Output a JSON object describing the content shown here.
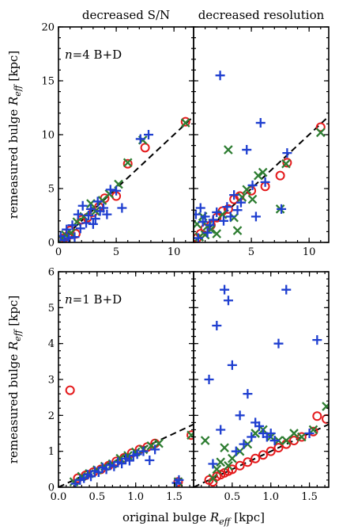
{
  "column_titles": [
    "decreased S/N",
    "decreased resolution"
  ],
  "ylabel": "remeasured bulge R",
  "ylabel_sub": "eff",
  "ylabel_unit": " [kpc]",
  "xlabel": "original bulge R",
  "xlabel_sub": "eff",
  "xlabel_unit": " [kpc]",
  "colors": {
    "circle": "#e41a1c",
    "x": "#2e7d32",
    "plus": "#1f3fd0"
  },
  "chart_data": [
    {
      "type": "scatter",
      "title": "decreased S/N",
      "panel_label": "n=4 B+D",
      "xlim": [
        0,
        11.7
      ],
      "ylim": [
        0,
        20
      ],
      "xticks": [
        0,
        5,
        10
      ],
      "yticks": [
        0,
        5,
        10,
        15,
        20
      ],
      "reference_line": "y = x",
      "series": [
        {
          "marker": "circle",
          "points": [
            [
              0.2,
              0.2
            ],
            [
              0.5,
              0.4
            ],
            [
              0.8,
              0.6
            ],
            [
              1.0,
              1.1
            ],
            [
              1.5,
              0.8
            ],
            [
              2.0,
              2.1
            ],
            [
              2.5,
              2.3
            ],
            [
              3.0,
              2.8
            ],
            [
              3.5,
              3.3
            ],
            [
              4.0,
              4.1
            ],
            [
              5.0,
              4.3
            ],
            [
              6.0,
              7.3
            ],
            [
              7.5,
              8.8
            ],
            [
              11.0,
              11.2
            ]
          ]
        },
        {
          "marker": "x",
          "points": [
            [
              0.3,
              0.3
            ],
            [
              0.6,
              0.7
            ],
            [
              1.1,
              0.9
            ],
            [
              1.6,
              1.9
            ],
            [
              2.2,
              2.4
            ],
            [
              2.8,
              3.6
            ],
            [
              3.2,
              2.9
            ],
            [
              3.8,
              3.9
            ],
            [
              4.4,
              4.5
            ],
            [
              5.2,
              5.4
            ],
            [
              6.0,
              7.4
            ],
            [
              7.3,
              9.5
            ],
            [
              11.0,
              11.1
            ]
          ]
        },
        {
          "marker": "plus",
          "points": [
            [
              0.2,
              0.6
            ],
            [
              0.5,
              0.2
            ],
            [
              0.7,
              1.2
            ],
            [
              0.9,
              0.4
            ],
            [
              1.2,
              1.6
            ],
            [
              1.4,
              0.5
            ],
            [
              1.7,
              2.6
            ],
            [
              1.9,
              1.3
            ],
            [
              2.1,
              3.4
            ],
            [
              2.4,
              1.8
            ],
            [
              2.6,
              2.5
            ],
            [
              2.8,
              3.1
            ],
            [
              3.0,
              1.7
            ],
            [
              3.2,
              2.2
            ],
            [
              3.4,
              3.8
            ],
            [
              3.6,
              2.9
            ],
            [
              3.9,
              3.2
            ],
            [
              4.2,
              2.6
            ],
            [
              4.5,
              4.9
            ],
            [
              5.0,
              4.8
            ],
            [
              5.5,
              3.2
            ],
            [
              7.1,
              9.6
            ],
            [
              7.8,
              10.0
            ]
          ]
        }
      ]
    },
    {
      "type": "scatter",
      "title": "decreased resolution",
      "xlim": [
        0,
        11.7
      ],
      "ylim": [
        0,
        20
      ],
      "xticks": [
        5,
        10
      ],
      "yticks": [
        0,
        5,
        10,
        15,
        20
      ],
      "reference_line": "y = x",
      "series": [
        {
          "marker": "circle",
          "points": [
            [
              0.3,
              0.4
            ],
            [
              0.6,
              0.8
            ],
            [
              1.0,
              1.3
            ],
            [
              1.5,
              1.6
            ],
            [
              2.0,
              2.3
            ],
            [
              2.5,
              2.9
            ],
            [
              3.0,
              3.1
            ],
            [
              3.5,
              4.0
            ],
            [
              4.0,
              4.3
            ],
            [
              5.0,
              4.8
            ],
            [
              6.2,
              5.2
            ],
            [
              7.5,
              6.2
            ],
            [
              8.1,
              7.4
            ],
            [
              11.0,
              10.7
            ]
          ]
        },
        {
          "marker": "x",
          "points": [
            [
              0.3,
              1.7
            ],
            [
              0.5,
              0.5
            ],
            [
              0.8,
              2.4
            ],
            [
              1.0,
              0.7
            ],
            [
              1.2,
              1.5
            ],
            [
              1.5,
              1.2
            ],
            [
              2.0,
              0.8
            ],
            [
              2.5,
              2.6
            ],
            [
              3.0,
              8.6
            ],
            [
              3.5,
              2.3
            ],
            [
              3.8,
              1.1
            ],
            [
              4.2,
              4.2
            ],
            [
              4.6,
              4.9
            ],
            [
              5.1,
              4.0
            ],
            [
              5.6,
              6.2
            ],
            [
              6.0,
              6.5
            ],
            [
              7.5,
              3.1
            ],
            [
              8.0,
              7.3
            ],
            [
              11.0,
              10.2
            ]
          ]
        },
        {
          "marker": "plus",
          "points": [
            [
              0.2,
              2.6
            ],
            [
              0.4,
              0.4
            ],
            [
              0.6,
              3.2
            ],
            [
              0.8,
              1.9
            ],
            [
              1.0,
              2.4
            ],
            [
              1.2,
              0.9
            ],
            [
              1.4,
              1.6
            ],
            [
              1.7,
              2.1
            ],
            [
              2.0,
              2.8
            ],
            [
              2.3,
              15.5
            ],
            [
              2.6,
              2.0
            ],
            [
              2.9,
              3.3
            ],
            [
              3.2,
              2.4
            ],
            [
              3.5,
              4.4
            ],
            [
              3.8,
              3.0
            ],
            [
              4.1,
              3.7
            ],
            [
              4.6,
              8.6
            ],
            [
              5.1,
              5.3
            ],
            [
              5.4,
              2.4
            ],
            [
              5.8,
              11.1
            ],
            [
              6.2,
              5.6
            ],
            [
              7.6,
              3.1
            ],
            [
              8.1,
              8.3
            ]
          ]
        }
      ]
    },
    {
      "type": "scatter",
      "title": "",
      "panel_label": "n=1 B+D",
      "xlim": [
        0,
        1.75
      ],
      "ylim": [
        0,
        6
      ],
      "xticks": [
        0.0,
        0.5,
        1.0,
        1.5
      ],
      "yticks": [
        0,
        1,
        2,
        3,
        4,
        5,
        6
      ],
      "reference_line": "y = x",
      "series": [
        {
          "marker": "circle",
          "points": [
            [
              0.15,
              2.7
            ],
            [
              0.25,
              0.25
            ],
            [
              0.35,
              0.33
            ],
            [
              0.45,
              0.42
            ],
            [
              0.55,
              0.5
            ],
            [
              0.65,
              0.6
            ],
            [
              0.75,
              0.72
            ],
            [
              0.85,
              0.82
            ],
            [
              0.95,
              0.95
            ],
            [
              1.05,
              1.05
            ],
            [
              1.15,
              1.12
            ],
            [
              1.25,
              1.22
            ],
            [
              1.55,
              0.15
            ],
            [
              1.72,
              1.45
            ]
          ]
        },
        {
          "marker": "x",
          "points": [
            [
              0.2,
              0.15
            ],
            [
              0.3,
              0.3
            ],
            [
              0.4,
              0.38
            ],
            [
              0.5,
              0.48
            ],
            [
              0.6,
              0.58
            ],
            [
              0.7,
              0.65
            ],
            [
              0.8,
              0.8
            ],
            [
              0.9,
              0.88
            ],
            [
              1.0,
              0.98
            ],
            [
              1.1,
              1.05
            ],
            [
              1.2,
              1.15
            ],
            [
              1.3,
              1.22
            ],
            [
              1.55,
              0.15
            ],
            [
              1.72,
              1.45
            ]
          ]
        },
        {
          "marker": "plus",
          "points": [
            [
              0.22,
              0.1
            ],
            [
              0.28,
              0.2
            ],
            [
              0.33,
              0.25
            ],
            [
              0.38,
              0.35
            ],
            [
              0.42,
              0.3
            ],
            [
              0.47,
              0.45
            ],
            [
              0.52,
              0.42
            ],
            [
              0.57,
              0.55
            ],
            [
              0.62,
              0.5
            ],
            [
              0.67,
              0.62
            ],
            [
              0.72,
              0.58
            ],
            [
              0.77,
              0.7
            ],
            [
              0.82,
              0.66
            ],
            [
              0.87,
              0.8
            ],
            [
              0.92,
              0.74
            ],
            [
              0.97,
              0.88
            ],
            [
              1.02,
              0.92
            ],
            [
              1.1,
              1.0
            ],
            [
              1.18,
              0.75
            ],
            [
              1.25,
              1.05
            ],
            [
              1.53,
              0.12
            ],
            [
              1.56,
              0.2
            ]
          ]
        }
      ]
    },
    {
      "type": "scatter",
      "title": "",
      "xlim": [
        0,
        1.75
      ],
      "ylim": [
        0,
        6
      ],
      "xticks": [
        0.5,
        1.0,
        1.5
      ],
      "yticks": [
        0,
        1,
        2,
        3,
        4,
        5,
        6
      ],
      "reference_line": "y = x",
      "series": [
        {
          "marker": "circle",
          "points": [
            [
              0.2,
              0.2
            ],
            [
              0.25,
              0.15
            ],
            [
              0.3,
              0.3
            ],
            [
              0.35,
              0.35
            ],
            [
              0.4,
              0.4
            ],
            [
              0.45,
              0.45
            ],
            [
              0.5,
              0.5
            ],
            [
              0.6,
              0.6
            ],
            [
              0.7,
              0.7
            ],
            [
              0.8,
              0.8
            ],
            [
              0.9,
              0.9
            ],
            [
              1.0,
              1.0
            ],
            [
              1.1,
              1.1
            ],
            [
              1.2,
              1.2
            ],
            [
              1.3,
              1.3
            ],
            [
              1.4,
              1.4
            ],
            [
              1.55,
              1.55
            ],
            [
              1.6,
              1.98
            ],
            [
              1.72,
              1.9
            ]
          ]
        },
        {
          "marker": "x",
          "points": [
            [
              0.25,
              0.25
            ],
            [
              0.3,
              0.5
            ],
            [
              0.35,
              0.7
            ],
            [
              0.4,
              1.1
            ],
            [
              0.45,
              0.6
            ],
            [
              0.5,
              0.8
            ],
            [
              0.6,
              1.0
            ],
            [
              0.7,
              1.2
            ],
            [
              0.8,
              1.5
            ],
            [
              0.9,
              1.6
            ],
            [
              1.0,
              1.4
            ],
            [
              1.1,
              1.3
            ],
            [
              1.2,
              1.3
            ],
            [
              1.3,
              1.5
            ],
            [
              1.4,
              1.4
            ],
            [
              1.55,
              1.6
            ],
            [
              1.72,
              2.25
            ],
            [
              0.15,
              1.3
            ]
          ]
        },
        {
          "marker": "plus",
          "points": [
            [
              0.2,
              3.0
            ],
            [
              0.25,
              0.65
            ],
            [
              0.3,
              4.5
            ],
            [
              0.35,
              1.6
            ],
            [
              0.4,
              5.5
            ],
            [
              0.45,
              5.2
            ],
            [
              0.5,
              3.4
            ],
            [
              0.55,
              1.0
            ],
            [
              0.6,
              2.0
            ],
            [
              0.65,
              1.2
            ],
            [
              0.7,
              2.6
            ],
            [
              0.75,
              1.4
            ],
            [
              0.8,
              1.8
            ],
            [
              0.85,
              1.7
            ],
            [
              0.9,
              1.5
            ],
            [
              0.95,
              1.4
            ],
            [
              1.0,
              1.5
            ],
            [
              1.05,
              1.3
            ],
            [
              1.1,
              4.0
            ],
            [
              1.2,
              5.5
            ],
            [
              1.5,
              1.5
            ],
            [
              1.6,
              4.1
            ]
          ]
        }
      ]
    }
  ]
}
